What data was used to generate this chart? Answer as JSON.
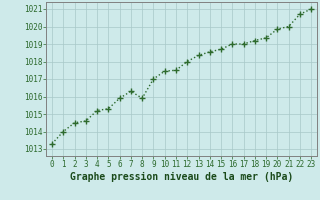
{
  "x": [
    0,
    1,
    2,
    3,
    4,
    5,
    6,
    7,
    8,
    9,
    10,
    11,
    12,
    13,
    14,
    15,
    16,
    17,
    18,
    19,
    20,
    21,
    22,
    23
  ],
  "y": [
    1013.3,
    1014.0,
    1014.5,
    1014.6,
    1015.2,
    1015.3,
    1015.9,
    1016.3,
    1015.9,
    1017.0,
    1017.45,
    1017.5,
    1018.0,
    1018.35,
    1018.55,
    1018.7,
    1019.0,
    1019.0,
    1019.2,
    1019.35,
    1019.85,
    1020.0,
    1020.7,
    1021.0
  ],
  "line_color": "#2d6a2d",
  "marker": "+",
  "marker_size": 4,
  "line_style": "dotted",
  "line_width": 1.0,
  "bg_color": "#ceeaea",
  "grid_color": "#a8c8c8",
  "xlabel": "Graphe pression niveau de la mer (hPa)",
  "xlabel_color": "#1a4a1a",
  "xlabel_fontsize": 7,
  "ytick_labels": [
    1013,
    1014,
    1015,
    1016,
    1017,
    1018,
    1019,
    1020,
    1021
  ],
  "xtick_labels": [
    0,
    1,
    2,
    3,
    4,
    5,
    6,
    7,
    8,
    9,
    10,
    11,
    12,
    13,
    14,
    15,
    16,
    17,
    18,
    19,
    20,
    21,
    22,
    23
  ],
  "ylim": [
    1012.6,
    1021.4
  ],
  "xlim": [
    -0.5,
    23.5
  ],
  "tick_color": "#2d6a2d",
  "tick_fontsize": 5.5,
  "spine_color": "#808080",
  "marker_edge_width": 1.0
}
